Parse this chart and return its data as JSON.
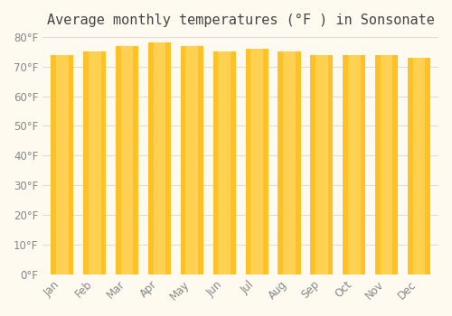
{
  "months": [
    "Jan",
    "Feb",
    "Mar",
    "Apr",
    "May",
    "Jun",
    "Jul",
    "Aug",
    "Sep",
    "Oct",
    "Nov",
    "Dec"
  ],
  "values": [
    74,
    75,
    77,
    78,
    77,
    75,
    76,
    75,
    74,
    74,
    74,
    73
  ],
  "bar_color_top": "#FFC125",
  "bar_color_bottom": "#FFD966",
  "title": "Average monthly temperatures (°F ) in Sonsonate",
  "ylim": [
    0,
    80
  ],
  "yticks": [
    0,
    10,
    20,
    30,
    40,
    50,
    60,
    70,
    80
  ],
  "ytick_labels": [
    "0°F",
    "10°F",
    "20°F",
    "30°F",
    "40°F",
    "50°F",
    "60°F",
    "70°F",
    "80°F"
  ],
  "background_color": "#FFFAF0",
  "grid_color": "#DDDDDD",
  "title_fontsize": 11,
  "tick_fontsize": 8.5,
  "bar_width": 0.7
}
